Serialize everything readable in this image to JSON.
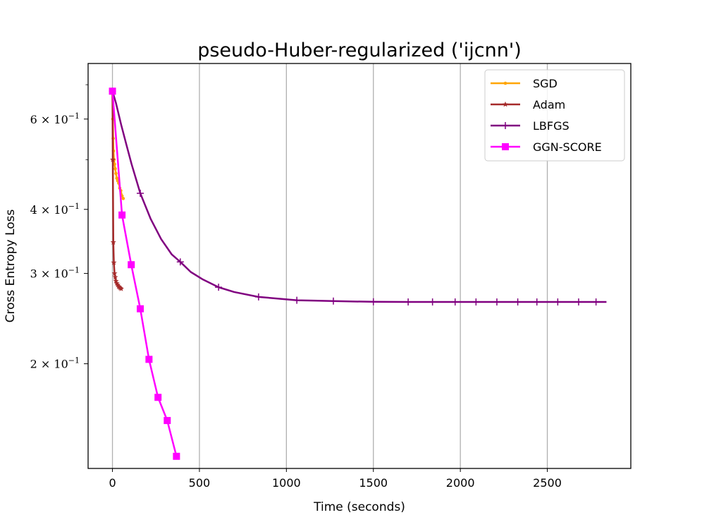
{
  "chart_data": {
    "type": "line",
    "title": "pseudo-Huber-regularized ('ijcnn')",
    "xlabel": "Time (seconds)",
    "ylabel": "Cross Entropy Loss",
    "xlim": [
      -140,
      2980
    ],
    "ylim": [
      0.125,
      0.77
    ],
    "yscale": "log",
    "grid": "x-major",
    "legend": "top-right",
    "xticks": [
      {
        "value": 0,
        "label": "0"
      },
      {
        "value": 500,
        "label": "500"
      },
      {
        "value": 1000,
        "label": "1000"
      },
      {
        "value": 1500,
        "label": "1500"
      },
      {
        "value": 2000,
        "label": "2000"
      },
      {
        "value": 2500,
        "label": "2500"
      }
    ],
    "yticks": [
      {
        "value": 0.2,
        "mantissa": "2",
        "exponent": "−1"
      },
      {
        "value": 0.3,
        "mantissa": "3",
        "exponent": "−1"
      },
      {
        "value": 0.4,
        "mantissa": "4",
        "exponent": "−1"
      },
      {
        "value": 0.6,
        "mantissa": "6",
        "exponent": "−1"
      }
    ],
    "series": [
      {
        "name": "SGD",
        "color": "#ffa500",
        "marker": "dot",
        "x": [
          0,
          2,
          4,
          6,
          9,
          12,
          16,
          20,
          25,
          30,
          36,
          42,
          48,
          55,
          62
        ],
        "y": [
          0.68,
          0.6,
          0.55,
          0.52,
          0.5,
          0.49,
          0.48,
          0.47,
          0.46,
          0.455,
          0.45,
          0.44,
          0.435,
          0.425,
          0.42
        ]
      },
      {
        "name": "Adam",
        "color": "#a52a2a",
        "marker": "star",
        "x": [
          0,
          2,
          5,
          8,
          12,
          16,
          20,
          25,
          30,
          35,
          40,
          45,
          50
        ],
        "y": [
          0.68,
          0.5,
          0.345,
          0.315,
          0.3,
          0.295,
          0.29,
          0.287,
          0.285,
          0.283,
          0.282,
          0.281,
          0.28
        ]
      },
      {
        "name": "LBFGS",
        "color": "#800080",
        "marker": "plus",
        "x": [
          0,
          20,
          50,
          80,
          110,
          160,
          220,
          280,
          340,
          390,
          450,
          520,
          610,
          700,
          840,
          950,
          1060,
          1160,
          1270,
          1390,
          1500,
          1600,
          1700,
          1840,
          1970,
          2090,
          2210,
          2330,
          2440,
          2560,
          2680,
          2780,
          2840
        ],
        "y": [
          0.68,
          0.645,
          0.585,
          0.535,
          0.49,
          0.43,
          0.383,
          0.35,
          0.327,
          0.316,
          0.302,
          0.292,
          0.282,
          0.276,
          0.27,
          0.268,
          0.266,
          0.2655,
          0.265,
          0.2645,
          0.2642,
          0.2641,
          0.264,
          0.264,
          0.264,
          0.264,
          0.264,
          0.264,
          0.264,
          0.264,
          0.264,
          0.264,
          0.264
        ],
        "marker_x": [
          0,
          160,
          390,
          610,
          840,
          1060,
          1270,
          1500,
          1700,
          1840,
          1970,
          2090,
          2210,
          2330,
          2440,
          2560,
          2680,
          2780
        ]
      },
      {
        "name": "GGN-SCORE",
        "color": "#ff00ff",
        "marker": "square",
        "x": [
          0,
          55,
          108,
          160,
          210,
          262,
          315,
          368
        ],
        "y": [
          0.68,
          0.39,
          0.312,
          0.256,
          0.204,
          0.172,
          0.155,
          0.132
        ]
      }
    ]
  }
}
